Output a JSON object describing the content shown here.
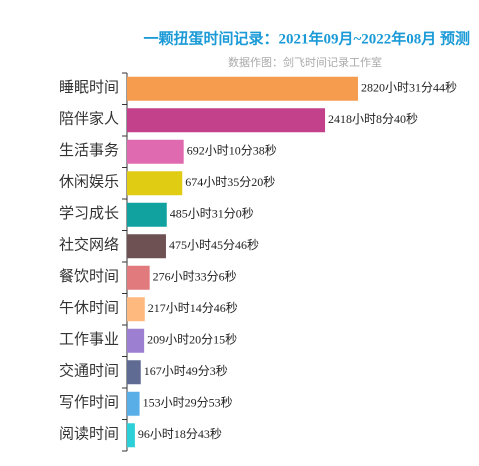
{
  "chart_data": {
    "type": "hbar",
    "title": "一颗扭蛋时间记录：2021年09月~2022年08月 预测",
    "subtitle": "数据作图：剑飞时间记录工作室",
    "categories": [
      "睡眠时间",
      "陪伴家人",
      "生活事务",
      "休闲娱乐",
      "学习成长",
      "社交网络",
      "餐饮时间",
      "午休时间",
      "工作事业",
      "交通时间",
      "写作时间",
      "阅读时间"
    ],
    "values": [
      2820.5289,
      2418.1444,
      692.1772,
      674.5889,
      485.5167,
      475.7628,
      276.5517,
      217.2461,
      209.3375,
      167.8175,
      153.4981,
      96.3119
    ],
    "value_labels": [
      "2820小时31分44秒",
      "2418小时8分40秒",
      "692小时10分38秒",
      "674小时35分20秒",
      "485小时31分0秒",
      "475小时45分46秒",
      "276小时33分6秒",
      "217小时14分46秒",
      "209小时20分15秒",
      "167小时49分3秒",
      "153小时29分53秒",
      "96小时18分43秒"
    ],
    "colors": [
      "#f59c4e",
      "#c2418a",
      "#e06ab0",
      "#e0cc12",
      "#11a2a0",
      "#6e5152",
      "#e07a7c",
      "#fdb97e",
      "#9c7fd0",
      "#5f6b93",
      "#5aaee8",
      "#2cd0d6"
    ]
  }
}
